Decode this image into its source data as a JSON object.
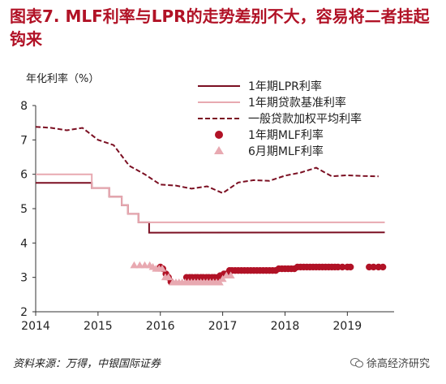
{
  "figure_title": "图表7. MLF利率与LPR的走势差别不大，容易将二者挂起钩来",
  "source_note": "资料来源：万得，中银国际证券",
  "watermark": "徐高经济研究",
  "colors": {
    "lpr": "#7b0f22",
    "benchmark": "#e8a9b1",
    "avg": "#7b0f22",
    "mlf1y": "#b11226",
    "mlf6m": "#e8a9b1",
    "title": "#b11226"
  },
  "chart_data": {
    "type": "line",
    "ylabel": "年化利率（%）",
    "ylim": [
      2,
      8
    ],
    "yticks": [
      2,
      3,
      4,
      5,
      6,
      7,
      8
    ],
    "xlim": [
      2014.0,
      2019.75
    ],
    "xticks": [
      "2014",
      "2015",
      "2016",
      "2017",
      "2018",
      "2019"
    ],
    "legend_position": "top-right",
    "series": [
      {
        "name": "1年期LPR利率",
        "kind": "line",
        "points": [
          [
            2014.0,
            5.75
          ],
          [
            2014.9,
            5.75
          ],
          [
            2014.9,
            5.6
          ],
          [
            2015.18,
            5.6
          ],
          [
            2015.18,
            5.35
          ],
          [
            2015.38,
            5.35
          ],
          [
            2015.38,
            5.1
          ],
          [
            2015.48,
            5.1
          ],
          [
            2015.48,
            4.85
          ],
          [
            2015.65,
            4.85
          ],
          [
            2015.65,
            4.6
          ],
          [
            2015.82,
            4.6
          ],
          [
            2015.82,
            4.3
          ],
          [
            2019.6,
            4.31
          ]
        ]
      },
      {
        "name": "1年期贷款基准利率",
        "kind": "line",
        "points": [
          [
            2014.0,
            6.0
          ],
          [
            2014.9,
            6.0
          ],
          [
            2014.9,
            5.6
          ],
          [
            2015.18,
            5.6
          ],
          [
            2015.18,
            5.35
          ],
          [
            2015.38,
            5.35
          ],
          [
            2015.38,
            5.1
          ],
          [
            2015.48,
            5.1
          ],
          [
            2015.48,
            4.85
          ],
          [
            2015.65,
            4.85
          ],
          [
            2015.65,
            4.6
          ],
          [
            2019.6,
            4.6
          ]
        ]
      },
      {
        "name": "一般贷款加权平均利率",
        "kind": "dashed",
        "points": [
          [
            2014.0,
            7.38
          ],
          [
            2014.25,
            7.35
          ],
          [
            2014.5,
            7.28
          ],
          [
            2014.75,
            7.35
          ],
          [
            2015.0,
            7.0
          ],
          [
            2015.25,
            6.85
          ],
          [
            2015.5,
            6.25
          ],
          [
            2015.75,
            6.0
          ],
          [
            2016.0,
            5.7
          ],
          [
            2016.25,
            5.67
          ],
          [
            2016.5,
            5.58
          ],
          [
            2016.75,
            5.65
          ],
          [
            2017.0,
            5.45
          ],
          [
            2017.25,
            5.76
          ],
          [
            2017.5,
            5.83
          ],
          [
            2017.75,
            5.81
          ],
          [
            2018.0,
            5.96
          ],
          [
            2018.25,
            6.05
          ],
          [
            2018.5,
            6.19
          ],
          [
            2018.75,
            5.94
          ],
          [
            2019.0,
            5.97
          ],
          [
            2019.25,
            5.95
          ],
          [
            2019.5,
            5.94
          ]
        ]
      },
      {
        "name": "1年期MLF利率",
        "kind": "dots",
        "points": [
          [
            2016.0,
            3.3
          ],
          [
            2016.04,
            3.25
          ],
          [
            2016.09,
            3.1
          ],
          [
            2016.13,
            3.0
          ],
          [
            2016.17,
            2.87
          ],
          [
            2016.42,
            3.0
          ],
          [
            2016.47,
            3.0
          ],
          [
            2016.51,
            3.0
          ],
          [
            2016.56,
            3.0
          ],
          [
            2016.6,
            3.0
          ],
          [
            2016.65,
            3.0
          ],
          [
            2016.69,
            3.0
          ],
          [
            2016.74,
            3.0
          ],
          [
            2016.78,
            3.0
          ],
          [
            2016.83,
            3.0
          ],
          [
            2016.87,
            3.0
          ],
          [
            2016.92,
            3.0
          ],
          [
            2016.96,
            3.05
          ],
          [
            2017.02,
            3.1
          ],
          [
            2017.06,
            3.1
          ],
          [
            2017.11,
            3.2
          ],
          [
            2017.15,
            3.2
          ],
          [
            2017.2,
            3.2
          ],
          [
            2017.25,
            3.2
          ],
          [
            2017.3,
            3.2
          ],
          [
            2017.35,
            3.2
          ],
          [
            2017.4,
            3.2
          ],
          [
            2017.45,
            3.2
          ],
          [
            2017.5,
            3.2
          ],
          [
            2017.55,
            3.2
          ],
          [
            2017.6,
            3.2
          ],
          [
            2017.65,
            3.2
          ],
          [
            2017.7,
            3.2
          ],
          [
            2017.75,
            3.2
          ],
          [
            2017.8,
            3.2
          ],
          [
            2017.85,
            3.2
          ],
          [
            2017.9,
            3.25
          ],
          [
            2017.95,
            3.25
          ],
          [
            2018.0,
            3.25
          ],
          [
            2018.05,
            3.25
          ],
          [
            2018.1,
            3.25
          ],
          [
            2018.15,
            3.25
          ],
          [
            2018.2,
            3.3
          ],
          [
            2018.25,
            3.3
          ],
          [
            2018.3,
            3.3
          ],
          [
            2018.35,
            3.3
          ],
          [
            2018.4,
            3.3
          ],
          [
            2018.45,
            3.3
          ],
          [
            2018.5,
            3.3
          ],
          [
            2018.55,
            3.3
          ],
          [
            2018.6,
            3.3
          ],
          [
            2018.65,
            3.3
          ],
          [
            2018.7,
            3.3
          ],
          [
            2018.75,
            3.3
          ],
          [
            2018.8,
            3.3
          ],
          [
            2018.85,
            3.3
          ],
          [
            2018.92,
            3.3
          ],
          [
            2019.0,
            3.3
          ],
          [
            2019.05,
            3.3
          ],
          [
            2019.35,
            3.3
          ],
          [
            2019.42,
            3.3
          ],
          [
            2019.5,
            3.3
          ],
          [
            2019.57,
            3.3
          ]
        ]
      },
      {
        "name": "6月期MLF利率",
        "kind": "triangles",
        "points": [
          [
            2015.58,
            3.35
          ],
          [
            2015.67,
            3.35
          ],
          [
            2015.75,
            3.35
          ],
          [
            2015.83,
            3.35
          ],
          [
            2015.88,
            3.3
          ],
          [
            2015.93,
            3.25
          ],
          [
            2015.98,
            3.25
          ],
          [
            2016.03,
            3.25
          ],
          [
            2016.08,
            3.0
          ],
          [
            2016.13,
            3.0
          ],
          [
            2016.2,
            2.85
          ],
          [
            2016.25,
            2.85
          ],
          [
            2016.3,
            2.85
          ],
          [
            2016.35,
            2.85
          ],
          [
            2016.4,
            2.85
          ],
          [
            2016.45,
            2.85
          ],
          [
            2016.5,
            2.85
          ],
          [
            2016.55,
            2.85
          ],
          [
            2016.6,
            2.85
          ],
          [
            2016.65,
            2.85
          ],
          [
            2016.7,
            2.85
          ],
          [
            2016.75,
            2.85
          ],
          [
            2016.8,
            2.85
          ],
          [
            2016.85,
            2.85
          ],
          [
            2016.9,
            2.85
          ],
          [
            2016.95,
            2.85
          ],
          [
            2017.0,
            2.95
          ],
          [
            2017.06,
            3.05
          ],
          [
            2017.13,
            3.05
          ]
        ]
      }
    ]
  }
}
